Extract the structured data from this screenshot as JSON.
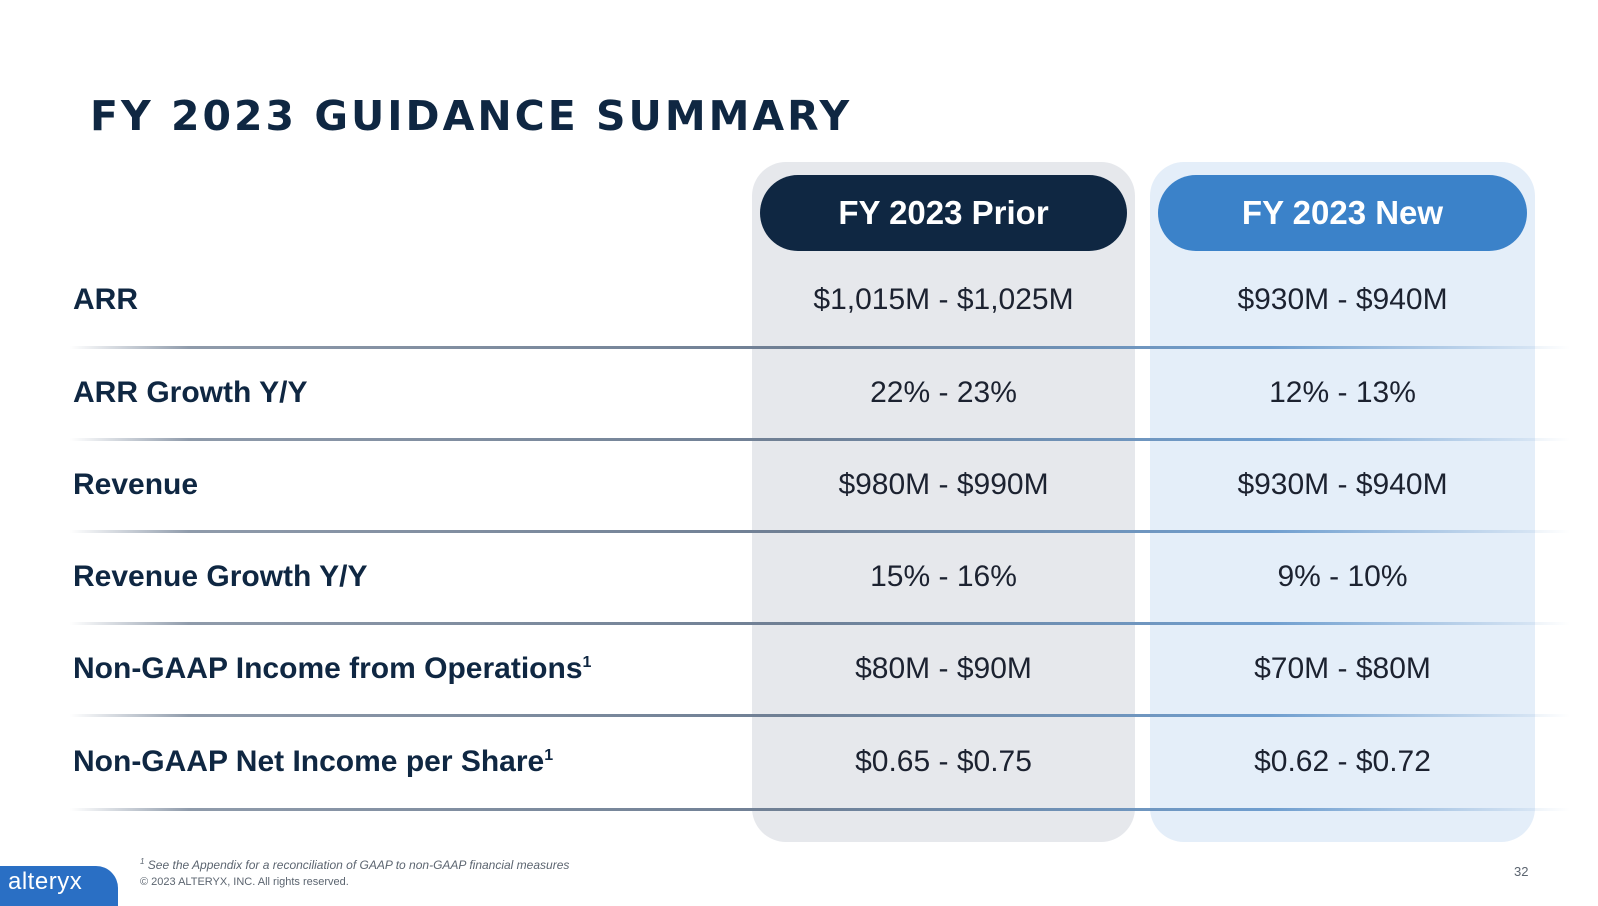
{
  "title": "FY 2023 GUIDANCE SUMMARY",
  "columns": {
    "prior": "FY 2023 Prior",
    "new": "FY 2023 New"
  },
  "rows": [
    {
      "label": "ARR",
      "sup": "",
      "prior": "$1,015M - $1,025M",
      "new": "$930M - $940M"
    },
    {
      "label": "ARR Growth Y/Y",
      "sup": "",
      "prior": "22% - 23%",
      "new": "12% - 13%"
    },
    {
      "label": "Revenue",
      "sup": "",
      "prior": "$980M - $990M",
      "new": "$930M - $940M"
    },
    {
      "label": "Revenue Growth Y/Y",
      "sup": "",
      "prior": "15% - 16%",
      "new": "9% - 10%"
    },
    {
      "label": "Non-GAAP Income from Operations",
      "sup": "1",
      "prior": "$80M - $90M",
      "new": "$70M - $80M"
    },
    {
      "label": "Non-GAAP Net Income per Share",
      "sup": "1",
      "prior": "$0.65 - $0.75",
      "new": "$0.62 - $0.72"
    }
  ],
  "footnote": {
    "marker": "1",
    "text": "See the Appendix for a reconciliation of GAAP to non-GAAP financial measures"
  },
  "copyright": "© 2023 ALTERYX, INC. All rights reserved.",
  "logo": "alteryx",
  "page_number": "32",
  "colors": {
    "navy": "#0f2742",
    "blue": "#3b82c9",
    "prior_column_bg": "#e6e8ec",
    "new_column_bg": "#e4eef9",
    "logo_bg": "#2a6fc4"
  }
}
